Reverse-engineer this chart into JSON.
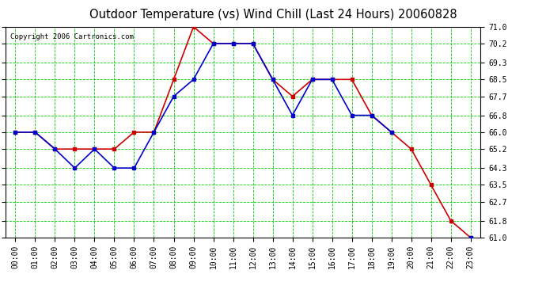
{
  "title": "Outdoor Temperature (vs) Wind Chill (Last 24 Hours) 20060828",
  "copyright": "Copyright 2006 Cartronics.com",
  "hours": [
    "00:00",
    "01:00",
    "02:00",
    "03:00",
    "04:00",
    "05:00",
    "06:00",
    "07:00",
    "08:00",
    "09:00",
    "10:00",
    "11:00",
    "12:00",
    "13:00",
    "14:00",
    "15:00",
    "16:00",
    "17:00",
    "18:00",
    "19:00",
    "20:00",
    "21:00",
    "22:00",
    "23:00"
  ],
  "temp": [
    66.0,
    66.0,
    65.2,
    65.2,
    65.2,
    65.2,
    66.0,
    66.0,
    68.5,
    71.0,
    70.2,
    70.2,
    70.2,
    68.5,
    67.7,
    68.5,
    68.5,
    68.5,
    66.8,
    66.0,
    65.2,
    63.5,
    61.8,
    61.0
  ],
  "windchill": [
    66.0,
    66.0,
    65.2,
    64.3,
    65.2,
    64.3,
    64.3,
    66.0,
    67.7,
    68.5,
    70.2,
    70.2,
    70.2,
    68.5,
    66.8,
    68.5,
    68.5,
    66.8,
    66.8,
    66.0,
    null,
    null,
    null,
    61.0
  ],
  "temp_color": "#cc0000",
  "windchill_color": "#0000cc",
  "bg_color": "#ffffff",
  "grid_color": "#00cc00",
  "ylim_min": 61.0,
  "ylim_max": 71.0,
  "yticks": [
    61.0,
    61.8,
    62.7,
    63.5,
    64.3,
    65.2,
    66.0,
    66.8,
    67.7,
    68.5,
    69.3,
    70.2,
    71.0
  ],
  "marker": "s",
  "marker_size": 3,
  "linewidth": 1.2,
  "title_fontsize": 10.5,
  "tick_fontsize": 7,
  "copyright_fontsize": 6.5
}
